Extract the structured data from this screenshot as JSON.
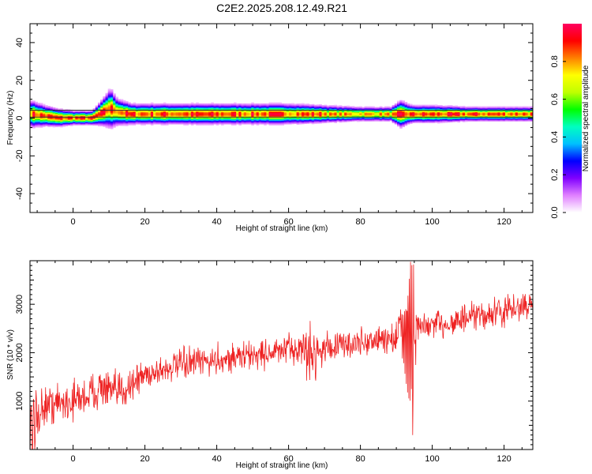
{
  "title": "C2E2.2025.208.12.49.R21",
  "colors": {
    "snr_line": "#ee2222",
    "axis": "#000000"
  },
  "chart_data": [
    {
      "type": "heatmap",
      "xlabel": "Height of straight line (km)",
      "ylabel": "Frequency (Hz)",
      "xlim": [
        -12,
        128
      ],
      "ylim": [
        -50,
        50
      ],
      "xticks": [
        0,
        20,
        40,
        60,
        80,
        100,
        120
      ],
      "yticks": [
        -40,
        -20,
        0,
        20,
        40
      ],
      "colorbar": {
        "label": "Normalized spectral amplitude",
        "range": [
          0,
          1
        ],
        "ticks": [
          0.0,
          0.2,
          0.4,
          0.6,
          0.8
        ],
        "colors": [
          "#ffffff",
          "#e080ff",
          "#8000ff",
          "#0000ff",
          "#00c0ff",
          "#00ffc0",
          "#00ff00",
          "#c0ff00",
          "#ffff00",
          "#ff8000",
          "#ff0000",
          "#ff0060"
        ]
      },
      "reference_lines_hz": [
        0.5,
        4.2
      ],
      "ridge": {
        "x_km": [
          -12,
          -8,
          -4,
          0,
          5,
          8,
          10,
          12,
          16,
          20,
          30,
          40,
          50,
          60,
          70,
          80,
          88,
          91,
          94,
          100,
          110,
          128
        ],
        "freq_hz": [
          2,
          1,
          0,
          0,
          0,
          3,
          5,
          3,
          2,
          2,
          2,
          2,
          2,
          2,
          2,
          2,
          2,
          2,
          2,
          2,
          2,
          2
        ],
        "spread_hz": [
          3,
          2,
          1.5,
          1,
          1,
          3,
          5,
          3,
          2,
          2,
          2,
          2,
          2,
          2,
          1.5,
          1,
          1,
          3,
          1.5,
          1.5,
          1,
          1
        ]
      }
    },
    {
      "type": "line",
      "xlabel": "Height of straight line (km)",
      "ylabel": "SNR (10 * v/v)",
      "xlim": [
        -12,
        128
      ],
      "ylim": [
        0,
        3900
      ],
      "xticks": [
        0,
        20,
        40,
        60,
        80,
        100,
        120
      ],
      "yticks": [
        1000,
        2000,
        3000
      ],
      "series": [
        {
          "trend_x_km": [
            -12,
            -10,
            -8,
            -5,
            0,
            5,
            8,
            10,
            12,
            15,
            20,
            25,
            30,
            40,
            50,
            60,
            64,
            66,
            70,
            80,
            88,
            92,
            94,
            96,
            100,
            110,
            120,
            128
          ],
          "trend_snr": [
            300,
            700,
            900,
            950,
            1000,
            1150,
            1300,
            1200,
            1150,
            1300,
            1550,
            1650,
            1750,
            1850,
            1950,
            2050,
            2100,
            1950,
            2100,
            2200,
            2300,
            2300,
            2400,
            2500,
            2550,
            2700,
            2850,
            3000
          ],
          "noise_snr": [
            250,
            250,
            200,
            200,
            200,
            200,
            200,
            200,
            200,
            200,
            150,
            150,
            150,
            150,
            150,
            150,
            200,
            300,
            150,
            150,
            150,
            400,
            1200,
            150,
            150,
            150,
            150,
            150
          ]
        }
      ]
    }
  ]
}
